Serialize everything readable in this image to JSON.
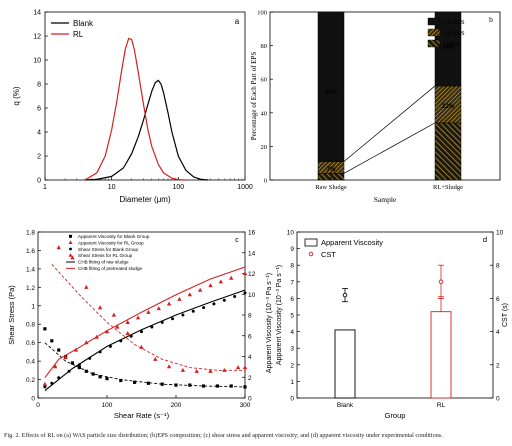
{
  "caption": "Fig. 2. Effects of RL on (a) WAS particle size distribution; (b)EPS composition; (c) shear stress and apparent viscosity; and (d) apparent viscosity under experimental conditions.",
  "chart_data": [
    {
      "panel": "a",
      "type": "line",
      "xlabel": "Diameter (μm)",
      "ylabel": "q (%)",
      "xscale": "log",
      "xlim": [
        1,
        1000
      ],
      "ylim": [
        0,
        14
      ],
      "xticks": [
        "1",
        "10",
        "100",
        "1000"
      ],
      "yticks": [
        "0",
        "2",
        "4",
        "6",
        "8",
        "10",
        "12",
        "14"
      ],
      "legend_position": "top-left",
      "series": [
        {
          "name": "Blank",
          "color": "#000000",
          "x": [
            4,
            6,
            10,
            15,
            20,
            25,
            30,
            35,
            40,
            45,
            50,
            55,
            60,
            70,
            80,
            100,
            130,
            170,
            220,
            280
          ],
          "y": [
            0,
            0.05,
            0.3,
            1.0,
            2.2,
            3.6,
            5.0,
            6.3,
            7.4,
            8.1,
            8.3,
            8.0,
            7.3,
            5.6,
            4.0,
            2.0,
            0.8,
            0.25,
            0.05,
            0
          ]
        },
        {
          "name": "RL",
          "color": "#d62020",
          "x": [
            4,
            6,
            8,
            10,
            12,
            14,
            16,
            18,
            20,
            22,
            25,
            30,
            35,
            40,
            50,
            60,
            80,
            100,
            130
          ],
          "y": [
            0,
            0.6,
            2.0,
            4.2,
            6.6,
            9.0,
            10.9,
            11.8,
            11.7,
            10.8,
            9.0,
            6.3,
            4.2,
            2.8,
            1.3,
            0.6,
            0.15,
            0.03,
            0
          ]
        }
      ]
    },
    {
      "panel": "b",
      "type": "bar",
      "xlabel": "Sample",
      "ylabel": "Percentage of Each Part of EPS",
      "ylim": [
        0,
        100
      ],
      "yticks": [
        "0",
        "20",
        "40",
        "60",
        "80",
        "100"
      ],
      "categories": [
        "Raw Sludge",
        "RL+Sludge"
      ],
      "legend_position": "top-right",
      "series": [
        {
          "name": "DOMs",
          "values": [
            4,
            34
          ]
        },
        {
          "name": "LB-EPS",
          "values": [
            7,
            22
          ]
        },
        {
          "name": "TB-EPS",
          "values": [
            89,
            44
          ]
        }
      ],
      "data_labels": [
        "89%",
        "7%",
        "44%",
        "22%"
      ]
    },
    {
      "panel": "c",
      "type": "scatter",
      "xlabel": "Shear Rate (s⁻¹)",
      "ylabel_left": "Shear Stress (Pa)",
      "ylabel_right": "Apparent Viscosity (10⁻³ Pa s⁻¹)",
      "xlim": [
        0,
        300
      ],
      "ylim_left": [
        0,
        1.8
      ],
      "ylim_right": [
        0,
        16
      ],
      "xticks": [
        "0",
        "100",
        "200",
        "300"
      ],
      "yticks_left": [
        "0",
        "0.2",
        "0.4",
        "0.6",
        "0.8",
        "1",
        "1.2",
        "1.4",
        "1.6",
        "1.8"
      ],
      "yticks_right": [
        "0",
        "2",
        "4",
        "6",
        "8",
        "10",
        "12",
        "14",
        "16"
      ],
      "legend_position": "top-left",
      "series": [
        {
          "name": "Apparent Viscosity for Blank Group",
          "marker": "square",
          "color": "#000000",
          "x": [
            10,
            20,
            30,
            40,
            50,
            60,
            70,
            80,
            90,
            100,
            120,
            140,
            160,
            180,
            200,
            220,
            240,
            260,
            280,
            300
          ],
          "y": [
            0.75,
            0.62,
            0.52,
            0.45,
            0.38,
            0.33,
            0.29,
            0.26,
            0.23,
            0.21,
            0.19,
            0.17,
            0.16,
            0.15,
            0.14,
            0.14,
            0.13,
            0.13,
            0.13,
            0.12
          ]
        },
        {
          "name": "Apparent Viscosity for RL Group",
          "marker": "triangle",
          "color": "#d62020",
          "x": [
            30,
            50,
            70,
            90,
            110,
            130,
            150,
            170,
            190,
            210,
            230,
            250,
            270,
            290,
            300
          ],
          "y": [
            1.63,
            1.52,
            1.2,
            0.98,
            0.9,
            0.7,
            0.55,
            0.42,
            0.34,
            0.3,
            0.29,
            0.29,
            0.3,
            0.33,
            0.33
          ]
        },
        {
          "name": "Shear Stress for Blank Group",
          "marker": "circle",
          "color": "#000000",
          "x": [
            10,
            20,
            30,
            45,
            60,
            75,
            90,
            105,
            120,
            135,
            150,
            165,
            180,
            195,
            210,
            225,
            240,
            255,
            270,
            285,
            300
          ],
          "y": [
            0.12,
            0.16,
            0.22,
            0.29,
            0.36,
            0.43,
            0.5,
            0.56,
            0.62,
            0.67,
            0.72,
            0.77,
            0.82,
            0.86,
            0.9,
            0.94,
            0.98,
            1.02,
            1.06,
            1.1,
            1.14
          ]
        },
        {
          "name": "Shear Stress for RL Group",
          "marker": "triangle-filled",
          "color": "#d62020",
          "x": [
            10,
            25,
            40,
            55,
            70,
            85,
            100,
            115,
            130,
            145,
            160,
            175,
            190,
            205,
            220,
            235,
            250,
            265,
            280,
            300
          ],
          "y": [
            0.15,
            0.34,
            0.44,
            0.52,
            0.6,
            0.66,
            0.72,
            0.77,
            0.82,
            0.87,
            0.93,
            0.97,
            1.02,
            1.07,
            1.12,
            1.17,
            1.22,
            1.26,
            1.3,
            1.35
          ]
        },
        {
          "name": "CHB fitting of raw sludge",
          "line": "solid",
          "color": "#000000",
          "x": [
            10,
            50,
            100,
            150,
            200,
            250,
            300
          ],
          "y": [
            0.08,
            0.32,
            0.56,
            0.74,
            0.9,
            1.04,
            1.17
          ]
        },
        {
          "name": "CHB fitting of pretreated sludge",
          "line": "solid",
          "color": "#d62020",
          "x": [
            10,
            30,
            60,
            100,
            150,
            200,
            250,
            300
          ],
          "y": [
            0.22,
            0.42,
            0.55,
            0.73,
            0.93,
            1.12,
            1.29,
            1.42
          ]
        }
      ],
      "dashed_fits": [
        {
          "color": "#000000",
          "x": [
            10,
            40,
            80,
            120,
            180,
            240,
            300
          ],
          "y": [
            0.6,
            0.4,
            0.26,
            0.2,
            0.15,
            0.13,
            0.12
          ]
        },
        {
          "color": "#d62020",
          "x": [
            20,
            60,
            100,
            140,
            180,
            220,
            260,
            300
          ],
          "y": [
            1.45,
            1.12,
            0.82,
            0.58,
            0.42,
            0.33,
            0.3,
            0.3
          ]
        }
      ]
    },
    {
      "panel": "d",
      "type": "bar",
      "xlabel": "Group",
      "ylabel_left": "Apparent Viscosity (10⁻³ Pa s⁻¹)",
      "ylabel_right": "CST (s)",
      "categories": [
        "Blank",
        "RL"
      ],
      "ylim_left": [
        0,
        10
      ],
      "ylim_right": [
        0,
        10
      ],
      "yticks_left": [
        "0",
        "1",
        "2",
        "3",
        "4",
        "5",
        "6",
        "7",
        "8",
        "9",
        "10"
      ],
      "yticks_right": [
        "0",
        "2",
        "4",
        "6",
        "8",
        "10"
      ],
      "legend_position": "top",
      "series": [
        {
          "name": "Apparent Viscosity",
          "values": [
            4.1,
            5.2
          ],
          "errors": [
            0,
            0.9
          ],
          "colors": [
            "#000000",
            "#d62020"
          ]
        },
        {
          "name": "CST",
          "marker": "circle",
          "values": [
            6.2,
            7.0
          ],
          "errors": [
            0.4,
            1.0
          ],
          "colors": [
            "#000000",
            "#d62020"
          ]
        }
      ]
    }
  ]
}
